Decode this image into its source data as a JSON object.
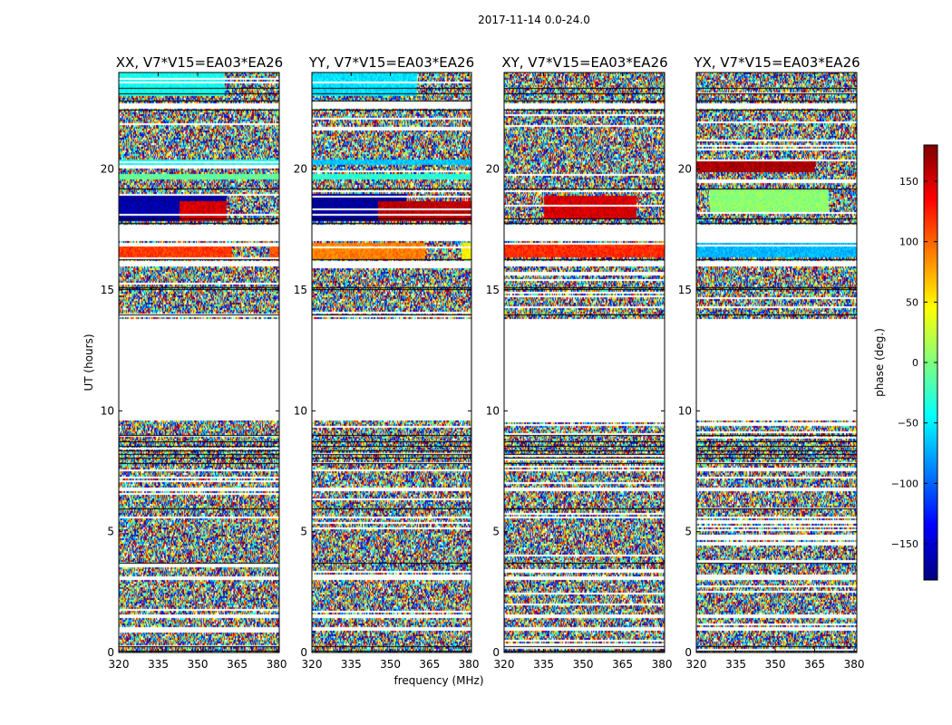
{
  "figure": {
    "suptitle": "2017-11-14 0.0-24.0"
  },
  "chart_data": {
    "type": "heatmap",
    "title": "2017-11-14 0.0-24.0",
    "xlabel": "frequency (MHz)",
    "ylabel": "UT (hours)",
    "xlim": [
      320,
      381
    ],
    "ylim": [
      0,
      24
    ],
    "xticks": [
      320,
      335,
      350,
      365,
      380
    ],
    "yticks": [
      0,
      5,
      10,
      15,
      20
    ],
    "grid": false,
    "colorbar": {
      "label": "phase (deg.)",
      "range": [
        -180,
        180
      ],
      "ticks": [
        -150,
        -100,
        -50,
        0,
        50,
        100,
        150
      ],
      "colormap": "jet",
      "colors": [
        "#00007f",
        "#0000ff",
        "#007fff",
        "#00ffff",
        "#7fff7f",
        "#ffff00",
        "#ff7f00",
        "#ff0000",
        "#7f0000"
      ]
    },
    "panels": [
      {
        "title": "XX, V7*V15=EA03*EA26",
        "coherent_bands": [
          {
            "t0": 16.3,
            "t1": 17.0,
            "f0": 320,
            "f1": 363,
            "phase": 115
          },
          {
            "t0": 16.3,
            "t1": 17.0,
            "f0": 377,
            "f1": 381,
            "phase": 105
          },
          {
            "t0": 18.7,
            "t1": 19.0,
            "f0": 320,
            "f1": 361,
            "phase": -170
          },
          {
            "t0": 17.9,
            "t1": 18.7,
            "f0": 320,
            "f1": 343,
            "phase": -165
          },
          {
            "t0": 17.9,
            "t1": 18.7,
            "f0": 343,
            "f1": 361,
            "phase": 150
          },
          {
            "t0": 20.2,
            "t1": 20.4,
            "f0": 320,
            "f1": 381,
            "phase": -40
          },
          {
            "t0": 19.6,
            "t1": 19.85,
            "f0": 320,
            "f1": 381,
            "phase": -10
          },
          {
            "t0": 23.1,
            "t1": 24.0,
            "f0": 320,
            "f1": 360,
            "phase": -40
          }
        ]
      },
      {
        "title": "YY, V7*V15=EA03*EA26",
        "coherent_bands": [
          {
            "t0": 16.3,
            "t1": 17.0,
            "f0": 320,
            "f1": 363,
            "phase": 90
          },
          {
            "t0": 16.3,
            "t1": 17.0,
            "f0": 377,
            "f1": 381,
            "phase": 50
          },
          {
            "t0": 18.7,
            "t1": 19.0,
            "f0": 320,
            "f1": 356,
            "phase": -175
          },
          {
            "t0": 17.9,
            "t1": 18.7,
            "f0": 320,
            "f1": 345,
            "phase": -170
          },
          {
            "t0": 17.9,
            "t1": 18.7,
            "f0": 345,
            "f1": 381,
            "phase": 160
          },
          {
            "t0": 20.2,
            "t1": 20.4,
            "f0": 320,
            "f1": 381,
            "phase": -65
          },
          {
            "t0": 19.6,
            "t1": 19.85,
            "f0": 320,
            "f1": 381,
            "phase": -30
          },
          {
            "t0": 23.1,
            "t1": 24.0,
            "f0": 320,
            "f1": 360,
            "phase": -55
          }
        ]
      },
      {
        "title": "XY, V7*V15=EA03*EA26",
        "coherent_bands": [
          {
            "t0": 16.4,
            "t1": 17.0,
            "f0": 320,
            "f1": 381,
            "phase": 120
          },
          {
            "t0": 18.0,
            "t1": 18.9,
            "f0": 335,
            "f1": 370,
            "phase": 150
          }
        ]
      },
      {
        "title": "YX, V7*V15=EA03*EA26",
        "coherent_bands": [
          {
            "t0": 16.4,
            "t1": 17.0,
            "f0": 320,
            "f1": 381,
            "phase": -70
          },
          {
            "t0": 19.9,
            "t1": 20.4,
            "f0": 320,
            "f1": 365,
            "phase": 165
          },
          {
            "t0": 18.2,
            "t1": 19.2,
            "f0": 325,
            "f1": 370,
            "phase": 5
          }
        ]
      }
    ]
  },
  "time_structure": {
    "flagged_blocks": [
      [
        0.95,
        1.05
      ],
      [
        1.45,
        1.58
      ],
      [
        3.05,
        3.15
      ],
      [
        5.55,
        5.63
      ],
      [
        6.72,
        6.85
      ],
      [
        7.55,
        7.62
      ],
      [
        9.65,
        13.85
      ],
      [
        16.0,
        16.25
      ],
      [
        17.05,
        17.75
      ],
      [
        22.55,
        22.75
      ]
    ],
    "black_rows": [
      0.08,
      0.28,
      3.7,
      5.98,
      7.85,
      8.05,
      8.2,
      8.38,
      8.55,
      8.72,
      9.0,
      14.0,
      15.02,
      15.1,
      16.28,
      17.78,
      17.95,
      19.2,
      22.45,
      22.82,
      23.15,
      23.35
    ]
  }
}
